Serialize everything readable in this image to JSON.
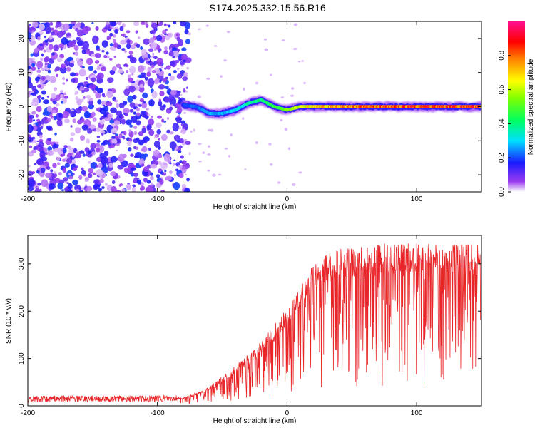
{
  "title": "S174.2025.332.15.56.R16",
  "chart_data": [
    {
      "type": "heatmap",
      "name": "spectrogram",
      "title": "S174.2025.332.15.56.R16",
      "xlabel": "Height of straight line (km)",
      "ylabel": "Frequency (Hz)",
      "xlim": [
        -200,
        150
      ],
      "ylim": [
        -25,
        25
      ],
      "xticks": [
        -200,
        -100,
        0,
        100
      ],
      "yticks": [
        -20,
        -10,
        0,
        10,
        20
      ],
      "colorbar": {
        "label": "Normalized spectral amplitude",
        "range": [
          0,
          1
        ],
        "ticks": [
          0.0,
          0.2,
          0.4,
          0.6,
          0.8
        ]
      },
      "noise_region_x": [
        -200,
        -80
      ],
      "signal_trace": {
        "x": [
          -80,
          -70,
          -60,
          -50,
          -40,
          -30,
          -20,
          -10,
          0,
          10,
          20,
          30,
          40,
          60,
          80,
          100,
          120,
          150
        ],
        "frequency": [
          0.5,
          0,
          -2,
          -2,
          -1,
          1,
          2,
          0,
          -1,
          0,
          0,
          0,
          0,
          0,
          0,
          0,
          0,
          0
        ],
        "amplitude": [
          0.2,
          0.25,
          0.3,
          0.3,
          0.35,
          0.4,
          0.45,
          0.5,
          0.6,
          0.7,
          0.75,
          0.8,
          0.85,
          0.9,
          0.92,
          0.94,
          0.95,
          0.95
        ]
      }
    },
    {
      "type": "line",
      "name": "snr",
      "xlabel": "Height of straight line (km)",
      "ylabel": "SNR (10 * v/v)",
      "xlim": [
        -200,
        150
      ],
      "ylim": [
        0,
        360
      ],
      "xticks": [
        -200,
        -100,
        0,
        100
      ],
      "yticks": [
        0,
        100,
        200,
        300
      ],
      "color": "#e8262a",
      "series": [
        {
          "name": "SNR",
          "x": [
            -200,
            -175,
            -150,
            -125,
            -100,
            -90,
            -80,
            -75,
            -70,
            -65,
            -60,
            -55,
            -50,
            -45,
            -40,
            -35,
            -30,
            -25,
            -20,
            -15,
            -10,
            -5,
            0,
            5,
            10,
            15,
            20,
            25,
            30,
            35,
            40,
            50,
            60,
            70,
            80,
            90,
            100,
            110,
            120,
            130,
            140,
            150
          ],
          "values": [
            15,
            15,
            15,
            15,
            15,
            15,
            16,
            20,
            25,
            30,
            35,
            45,
            55,
            65,
            75,
            85,
            95,
            105,
            120,
            135,
            150,
            165,
            185,
            205,
            225,
            245,
            260,
            270,
            280,
            285,
            290,
            295,
            300,
            300,
            300,
            300,
            300,
            300,
            300,
            300,
            300,
            300
          ]
        }
      ]
    }
  ]
}
